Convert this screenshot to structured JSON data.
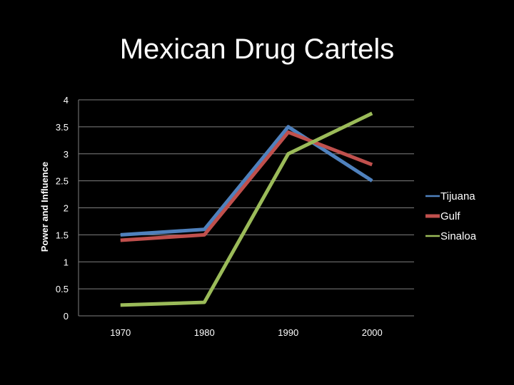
{
  "chart_data": {
    "type": "line",
    "title": "Mexican Drug Cartels",
    "xlabel": "",
    "ylabel": "Power and Influence",
    "categories": [
      "1970",
      "1980",
      "1990",
      "2000"
    ],
    "y_ticks": [
      "0",
      "0.5",
      "1",
      "1.5",
      "2",
      "2.5",
      "3",
      "3.5",
      "4"
    ],
    "ylim": [
      0,
      4
    ],
    "grid": true,
    "legend_position": "right",
    "series": [
      {
        "name": "Tijuana",
        "values": [
          1.5,
          1.6,
          3.5,
          2.5
        ],
        "color": "#4f81bd"
      },
      {
        "name": "Gulf",
        "values": [
          1.4,
          1.5,
          3.4,
          2.8
        ],
        "color": "#c0504d"
      },
      {
        "name": "Sinaloa",
        "values": [
          0.2,
          0.25,
          3.0,
          3.75
        ],
        "color": "#9bbb59"
      }
    ]
  },
  "colors": {
    "background": "#000000",
    "text": "#ffffff",
    "gridline": "#808080"
  }
}
